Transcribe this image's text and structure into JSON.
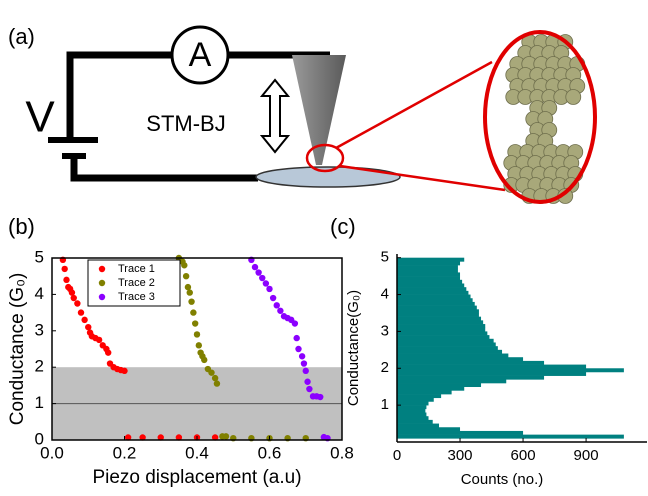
{
  "schematic": {
    "panel": "(a)",
    "ammeter": "A",
    "voltage": "V",
    "method": "STM-BJ"
  },
  "chart_data": [
    {
      "type": "scatter",
      "panel": "(b)",
      "x_label": "Piezo displacement (a.u)",
      "y_label": "Conductance (G₀)",
      "xlim": [
        0,
        0.8
      ],
      "ylim": [
        0,
        5
      ],
      "xticks": [
        {
          "value": 0,
          "label": "0.0"
        },
        0.2,
        0.4,
        0.6,
        0.8
      ],
      "yticks": [
        0,
        1,
        2,
        3,
        4,
        5
      ],
      "band": [
        0,
        2
      ],
      "band_line": 1,
      "legend": "upper left",
      "series": [
        {
          "name": "Trace 1",
          "color": "#ff0000",
          "x": [
            0.03,
            0.035,
            0.04,
            0.045,
            0.05,
            0.055,
            0.06,
            0.07,
            0.08,
            0.09,
            0.1,
            0.105,
            0.11,
            0.12,
            0.13,
            0.14,
            0.15,
            0.155,
            0.16,
            0.17,
            0.18,
            0.19,
            0.2,
            0.21,
            0.25,
            0.3,
            0.35,
            0.4,
            0.45
          ],
          "values": [
            4.95,
            4.7,
            4.4,
            4.2,
            4.15,
            4.05,
            3.9,
            3.75,
            3.5,
            3.3,
            3.1,
            2.95,
            2.85,
            2.8,
            2.75,
            2.6,
            2.5,
            2.4,
            2.1,
            2.0,
            1.95,
            1.92,
            1.9,
            0.07,
            0.07,
            0.07,
            0.07,
            0.07,
            0.07
          ]
        },
        {
          "name": "Trace 2",
          "color": "#808000",
          "x": [
            0.35,
            0.36,
            0.365,
            0.37,
            0.375,
            0.38,
            0.385,
            0.39,
            0.395,
            0.4,
            0.405,
            0.41,
            0.415,
            0.42,
            0.43,
            0.44,
            0.45,
            0.455,
            0.47,
            0.48,
            0.5,
            0.55,
            0.6,
            0.65,
            0.7
          ],
          "values": [
            5.0,
            4.9,
            4.8,
            4.5,
            4.2,
            4.05,
            3.8,
            3.5,
            3.2,
            2.9,
            2.6,
            2.4,
            2.3,
            2.2,
            1.95,
            1.85,
            1.7,
            1.55,
            0.1,
            0.1,
            0.05,
            0.05,
            0.05,
            0.05,
            0.05
          ]
        },
        {
          "name": "Trace 3",
          "color": "#8b00ff",
          "x": [
            0.55,
            0.56,
            0.57,
            0.58,
            0.59,
            0.6,
            0.61,
            0.62,
            0.63,
            0.64,
            0.65,
            0.66,
            0.67,
            0.675,
            0.68,
            0.69,
            0.695,
            0.7,
            0.705,
            0.71,
            0.72,
            0.73,
            0.74,
            0.75,
            0.76
          ],
          "values": [
            4.95,
            4.75,
            4.6,
            4.45,
            4.3,
            4.15,
            3.9,
            3.7,
            3.55,
            3.4,
            3.35,
            3.3,
            3.2,
            2.8,
            2.5,
            2.3,
            2.1,
            1.9,
            1.6,
            1.4,
            1.2,
            1.2,
            1.18,
            0.08,
            0.05
          ]
        }
      ]
    },
    {
      "type": "histogram",
      "panel": "(c)",
      "x_label": "Counts (no.)",
      "y_label": "Conductance(G₀)",
      "xlim": [
        0,
        1190
      ],
      "ylim": [
        0,
        5.1
      ],
      "xticks": [
        0,
        300,
        600,
        900
      ],
      "yticks": [
        1,
        2,
        3,
        4,
        5
      ],
      "color": "#008080",
      "bins": [
        0.1,
        0.2,
        0.3,
        0.4,
        0.5,
        0.6,
        0.7,
        0.8,
        0.9,
        1.0,
        1.1,
        1.2,
        1.3,
        1.4,
        1.5,
        1.6,
        1.7,
        1.8,
        1.9,
        2.0,
        2.1,
        2.2,
        2.3,
        2.4,
        2.5,
        2.6,
        2.7,
        2.8,
        2.9,
        3.0,
        3.1,
        3.2,
        3.3,
        3.4,
        3.5,
        3.6,
        3.7,
        3.8,
        3.9,
        4.0,
        4.1,
        4.2,
        4.3,
        4.4,
        4.5,
        4.6,
        4.7,
        4.8,
        4.9,
        5.0
      ],
      "values": [
        1080,
        600,
        300,
        200,
        170,
        150,
        140,
        135,
        140,
        150,
        175,
        210,
        260,
        320,
        400,
        520,
        700,
        900,
        1080,
        900,
        700,
        600,
        530,
        500,
        480,
        470,
        460,
        440,
        430,
        420,
        420,
        410,
        400,
        390,
        390,
        380,
        370,
        360,
        350,
        340,
        330,
        320,
        310,
        300,
        300,
        290,
        290,
        300,
        320
      ]
    }
  ]
}
